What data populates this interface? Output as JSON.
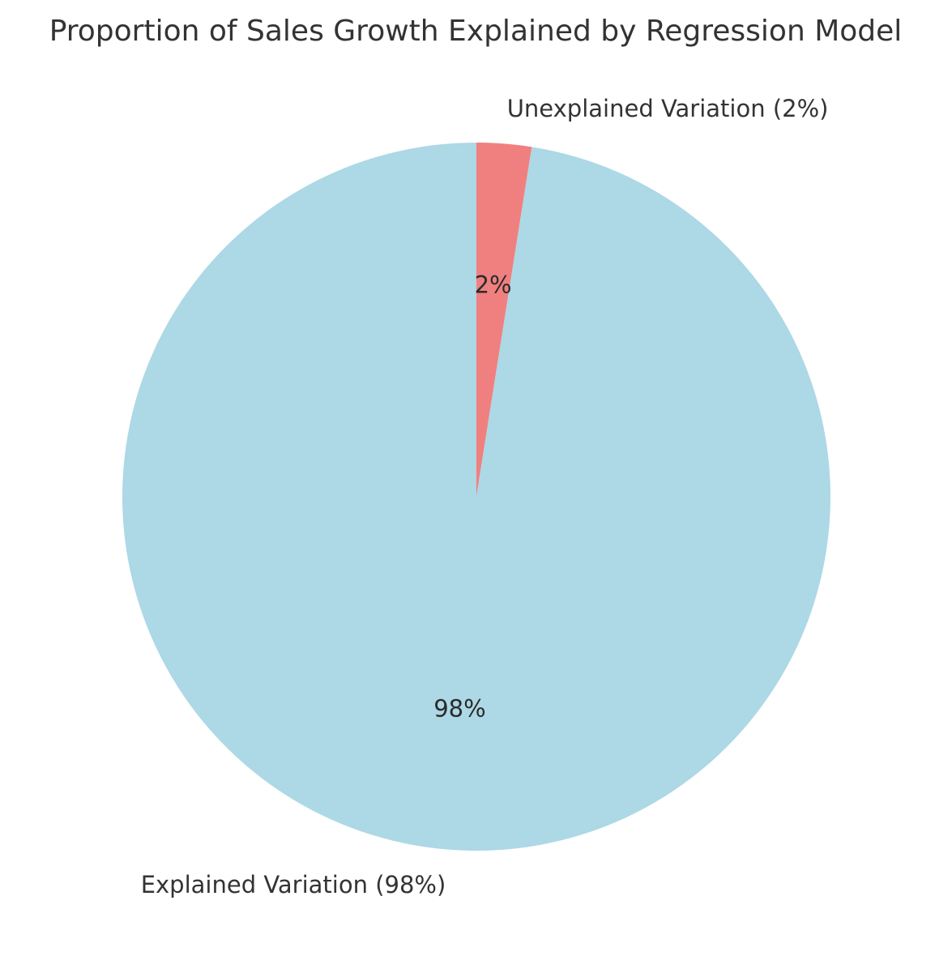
{
  "chart_data": {
    "type": "pie",
    "title": "Proportion of Sales Growth Explained by Regression Model",
    "start_angle_deg": 90,
    "direction": "clockwise",
    "slices": [
      {
        "label": "Unexplained Variation (2%)",
        "value": 2.5,
        "pct_label": "2%",
        "color": "#F08080"
      },
      {
        "label": "Explained Variation (98%)",
        "value": 97.5,
        "pct_label": "98%",
        "color": "#ADD8E6"
      }
    ]
  }
}
